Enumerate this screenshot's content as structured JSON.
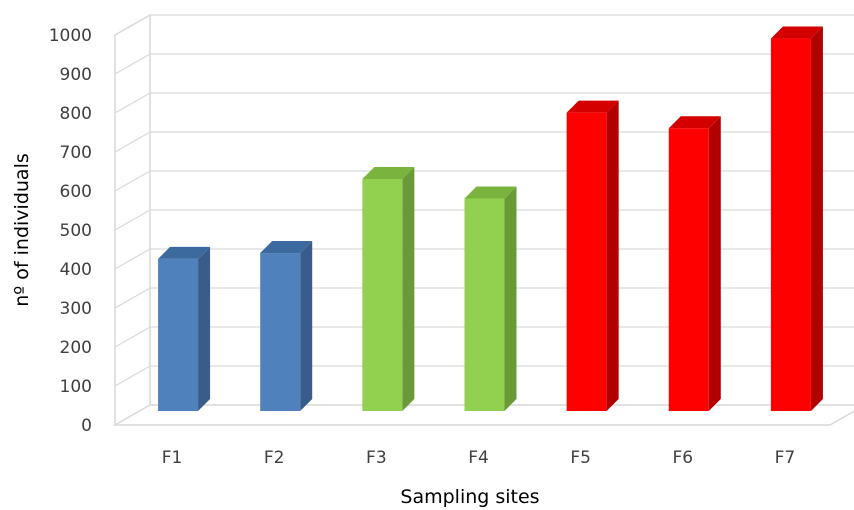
{
  "chart_data": {
    "type": "bar",
    "title": "",
    "xlabel": "Sampling sites",
    "ylabel": "nº of individuals",
    "categories": [
      "F1",
      "F2",
      "F3",
      "F4",
      "F5",
      "F6",
      "F7"
    ],
    "values": [
      390,
      405,
      595,
      545,
      765,
      725,
      955
    ],
    "ylim": [
      0,
      1000
    ],
    "yticks": [
      0,
      100,
      200,
      300,
      400,
      500,
      600,
      700,
      800,
      900,
      1000
    ],
    "grid": true,
    "legend": "none",
    "style": "3d",
    "colors": {
      "F1": {
        "front": "#4f81bd",
        "side": "#385d8a",
        "top": "#3c6a9e"
      },
      "F2": {
        "front": "#4f81bd",
        "side": "#385d8a",
        "top": "#3c6a9e"
      },
      "F3": {
        "front": "#92d050",
        "side": "#6a9a38",
        "top": "#7ab43f"
      },
      "F4": {
        "front": "#92d050",
        "side": "#6a9a38",
        "top": "#7ab43f"
      },
      "F5": {
        "front": "#ff0000",
        "side": "#b00000",
        "top": "#d40000"
      },
      "F6": {
        "front": "#ff0000",
        "side": "#b00000",
        "top": "#d40000"
      },
      "F7": {
        "front": "#ff0000",
        "side": "#b00000",
        "top": "#d40000"
      }
    }
  }
}
